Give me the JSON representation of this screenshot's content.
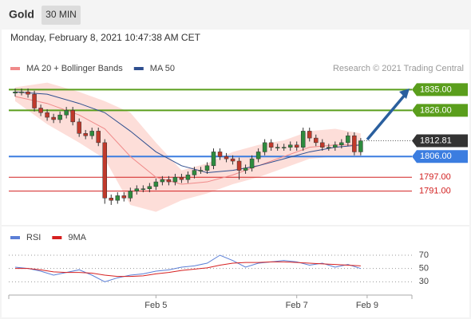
{
  "header": {
    "title": "Gold",
    "interval": "30 MIN",
    "date": "Monday, February 8, 2021 10:47:38 AM CET"
  },
  "chart_data": [
    {
      "type": "candlestick",
      "source": "Research © 2021 Trading Central",
      "xlim": [
        -1,
        62
      ],
      "ylim": [
        1776,
        1841
      ],
      "up_color": "#2e8b3e",
      "down_color": "#c0392b",
      "open": [
        1833.5,
        1834,
        1834,
        1833,
        1827,
        1825,
        1823,
        1822,
        1824,
        1826,
        1821,
        1816,
        1815,
        1817,
        1812,
        1788,
        1787,
        1789,
        1788,
        1791,
        1792,
        1792,
        1793,
        1795,
        1796,
        1795,
        1797,
        1796,
        1798,
        1800,
        1800,
        1802,
        1808,
        1806,
        1805,
        1804,
        1800,
        1801,
        1805,
        1808,
        1812,
        1810,
        1810,
        1810,
        1811,
        1810,
        1817,
        1814,
        1812,
        1810,
        1810,
        1811,
        1812,
        1815,
        1808
      ],
      "high": [
        1835.5,
        1835.5,
        1835.5,
        1834.5,
        1828.5,
        1826.5,
        1824.5,
        1825.5,
        1827.5,
        1827.5,
        1822.5,
        1817.5,
        1818.5,
        1818.5,
        1813.5,
        1789.5,
        1790.5,
        1790.5,
        1792.5,
        1793.5,
        1793.5,
        1794.5,
        1796.5,
        1797.5,
        1797.5,
        1798.5,
        1798.5,
        1799.5,
        1801.5,
        1801.5,
        1803.5,
        1809.5,
        1809.5,
        1807.5,
        1806.5,
        1805.5,
        1802.5,
        1806.5,
        1809.5,
        1813.5,
        1813.5,
        1811.5,
        1811.5,
        1812.5,
        1812.5,
        1818.5,
        1818.5,
        1815.5,
        1813.5,
        1811.5,
        1812.5,
        1813.5,
        1816.5,
        1816.5,
        1814
      ],
      "low": [
        1832,
        1832.5,
        1831.5,
        1825.5,
        1823.5,
        1821.5,
        1820.5,
        1820.5,
        1822.5,
        1819.5,
        1814.5,
        1813.5,
        1813.5,
        1810.5,
        1785.5,
        1785,
        1785.5,
        1786.5,
        1786.5,
        1789.5,
        1790.5,
        1790.5,
        1791.5,
        1793.5,
        1793.5,
        1793.5,
        1794.5,
        1794.5,
        1796.5,
        1798.5,
        1798.5,
        1800.5,
        1804.5,
        1803.5,
        1802.5,
        1796,
        1798.5,
        1799.5,
        1803.5,
        1806.5,
        1808.5,
        1808.5,
        1808.5,
        1808.5,
        1808.5,
        1808.5,
        1812.5,
        1810.5,
        1808.5,
        1808.5,
        1808.5,
        1809.5,
        1810.5,
        1806.5,
        1806.5
      ],
      "close": [
        1834,
        1834,
        1833,
        1827,
        1825,
        1823,
        1822,
        1824,
        1826,
        1821,
        1816,
        1815,
        1817,
        1812,
        1788,
        1787,
        1789,
        1788,
        1791,
        1792,
        1792,
        1793,
        1795,
        1796,
        1795,
        1797,
        1796,
        1798,
        1800,
        1800,
        1802,
        1808,
        1806,
        1805,
        1804,
        1800,
        1801,
        1805,
        1808,
        1812,
        1810,
        1810,
        1810,
        1811,
        1810,
        1817,
        1814,
        1812,
        1810,
        1810,
        1811,
        1812,
        1815,
        1808,
        1812.81
      ],
      "ma_x": [
        0,
        5,
        10,
        14,
        18,
        22,
        26,
        30,
        34,
        38,
        42,
        46,
        50,
        54
      ],
      "band": {
        "color": "#fcd6d0",
        "upper": [
          1836,
          1838,
          1834,
          1830,
          1825,
          1812,
          1800,
          1803,
          1808,
          1811,
          1813,
          1817,
          1818,
          1816
        ],
        "lower": [
          1830,
          1820,
          1812,
          1805,
          1785,
          1782,
          1787,
          1790,
          1794,
          1797,
          1801,
          1805,
          1806,
          1806
        ]
      },
      "series": [
        {
          "name": "MA 20 + Bollinger Bands",
          "color": "#f08a8a",
          "values": [
            1832,
            1829,
            1824,
            1818,
            1806,
            1797,
            1794,
            1795,
            1798,
            1802,
            1806,
            1810,
            1811,
            1811
          ]
        },
        {
          "name": "MA 50",
          "color": "#2f4f8f",
          "values": [
            1834,
            1833,
            1829,
            1825,
            1817,
            1808,
            1802,
            1799,
            1800,
            1802,
            1805,
            1808,
            1810,
            1811
          ]
        }
      ],
      "levels": [
        {
          "value": 1835,
          "label": "1835.00",
          "color": "#5a9e1c",
          "style": "box"
        },
        {
          "value": 1826,
          "label": "1826.00",
          "color": "#5a9e1c",
          "style": "box"
        },
        {
          "value": 1812.81,
          "label": "1812.81",
          "color": "#333333",
          "style": "current"
        },
        {
          "value": 1806,
          "label": "1806.00",
          "color": "#3b7de0",
          "style": "box"
        },
        {
          "value": 1797,
          "label": "1797.00",
          "color": "#d22020",
          "style": "text"
        },
        {
          "value": 1791,
          "label": "1791.00",
          "color": "#d22020",
          "style": "text"
        }
      ]
    },
    {
      "type": "line",
      "xlim": [
        -1,
        62
      ],
      "ylim": [
        10,
        88
      ],
      "yticks": [
        30,
        50,
        70
      ],
      "xticks": [
        {
          "value": 22,
          "label": "Feb 5"
        },
        {
          "value": 44,
          "label": "Feb 7"
        },
        {
          "value": 55,
          "label": "Feb 9"
        }
      ],
      "x": [
        0,
        2,
        4,
        6,
        8,
        10,
        12,
        14,
        16,
        18,
        20,
        22,
        24,
        26,
        28,
        30,
        32,
        34,
        36,
        38,
        40,
        42,
        44,
        46,
        48,
        50,
        52,
        54
      ],
      "series": [
        {
          "name": "RSI",
          "color": "#5b7fd6",
          "values": [
            52,
            50,
            46,
            40,
            44,
            48,
            40,
            30,
            36,
            40,
            42,
            46,
            48,
            52,
            54,
            58,
            70,
            62,
            52,
            58,
            60,
            62,
            60,
            55,
            58,
            52,
            56,
            50
          ]
        },
        {
          "name": "9MA",
          "color": "#d62020",
          "values": [
            50,
            50,
            48,
            45,
            44,
            44,
            43,
            40,
            38,
            38,
            39,
            42,
            44,
            47,
            49,
            51,
            55,
            58,
            59,
            59,
            60,
            60,
            59,
            58,
            57,
            56,
            55,
            54
          ]
        }
      ]
    }
  ]
}
